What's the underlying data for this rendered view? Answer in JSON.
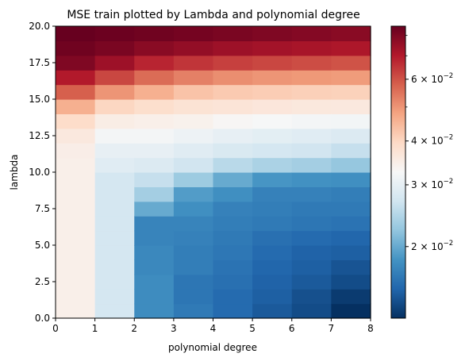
{
  "chart_data": {
    "type": "heatmap",
    "title": "MSE train plotted by Lambda and polynomial degree",
    "xlabel": "polynomial degree",
    "ylabel": "lambda",
    "xlim": [
      0,
      8
    ],
    "ylim": [
      0,
      20
    ],
    "x_ticks": [
      "0",
      "1",
      "2",
      "3",
      "4",
      "5",
      "6",
      "7",
      "8"
    ],
    "y_ticks": [
      "0.0",
      "2.5",
      "5.0",
      "7.5",
      "10.0",
      "12.5",
      "15.0",
      "17.5",
      "20.0"
    ],
    "colormap": "RdBu_r",
    "colorbar": {
      "scale": "log",
      "vmin": 0.0125,
      "vmax": 0.085,
      "ticks": [
        {
          "value": 0.02,
          "base": "2 × 10",
          "exp": "−2"
        },
        {
          "value": 0.03,
          "base": "3 × 10",
          "exp": "−2"
        },
        {
          "value": 0.04,
          "base": "4 × 10",
          "exp": "−2"
        },
        {
          "value": 0.06,
          "base": "6 × 10",
          "exp": "−2"
        }
      ]
    },
    "degrees": [
      0,
      1,
      2,
      3,
      4,
      5,
      6,
      7
    ],
    "lambdas": [
      0,
      1,
      2,
      3,
      4,
      5,
      6,
      7,
      8,
      9,
      10,
      11,
      12,
      13,
      14,
      15,
      16,
      17,
      18,
      19
    ],
    "values_by_degree": [
      [
        0.0345,
        0.0345,
        0.0345,
        0.0345,
        0.0345,
        0.0345,
        0.0345,
        0.0345,
        0.0345,
        0.0345,
        0.0345,
        0.0348,
        0.036,
        0.039,
        0.046,
        0.058,
        0.07,
        0.08,
        0.083,
        0.085
      ],
      [
        0.0275,
        0.0275,
        0.0275,
        0.0275,
        0.0275,
        0.0275,
        0.0275,
        0.0275,
        0.0275,
        0.0275,
        0.029,
        0.03,
        0.032,
        0.035,
        0.04,
        0.05,
        0.062,
        0.074,
        0.081,
        0.084
      ],
      [
        0.0178,
        0.0178,
        0.0178,
        0.0175,
        0.0175,
        0.0172,
        0.0172,
        0.02,
        0.0235,
        0.026,
        0.0285,
        0.03,
        0.032,
        0.0345,
        0.0385,
        0.046,
        0.056,
        0.068,
        0.078,
        0.083
      ],
      [
        0.0165,
        0.0162,
        0.0162,
        0.0168,
        0.0168,
        0.017,
        0.0172,
        0.018,
        0.019,
        0.023,
        0.027,
        0.029,
        0.031,
        0.034,
        0.0375,
        0.043,
        0.053,
        0.065,
        0.076,
        0.082
      ],
      [
        0.0155,
        0.0155,
        0.0158,
        0.016,
        0.0163,
        0.0165,
        0.0168,
        0.017,
        0.018,
        0.02,
        0.025,
        0.028,
        0.03,
        0.033,
        0.037,
        0.042,
        0.051,
        0.063,
        0.074,
        0.081
      ],
      [
        0.0145,
        0.0148,
        0.015,
        0.0152,
        0.0155,
        0.0158,
        0.0165,
        0.0168,
        0.017,
        0.0185,
        0.024,
        0.0275,
        0.0295,
        0.0325,
        0.0365,
        0.0415,
        0.05,
        0.062,
        0.073,
        0.08
      ],
      [
        0.0138,
        0.014,
        0.0145,
        0.0148,
        0.015,
        0.0155,
        0.0162,
        0.0165,
        0.017,
        0.0182,
        0.0235,
        0.027,
        0.029,
        0.032,
        0.0362,
        0.041,
        0.0495,
        0.061,
        0.072,
        0.079
      ],
      [
        0.0125,
        0.013,
        0.0138,
        0.0142,
        0.0148,
        0.0152,
        0.016,
        0.0165,
        0.0168,
        0.018,
        0.0225,
        0.026,
        0.0285,
        0.0318,
        0.036,
        0.0408,
        0.049,
        0.06,
        0.071,
        0.078
      ]
    ]
  }
}
